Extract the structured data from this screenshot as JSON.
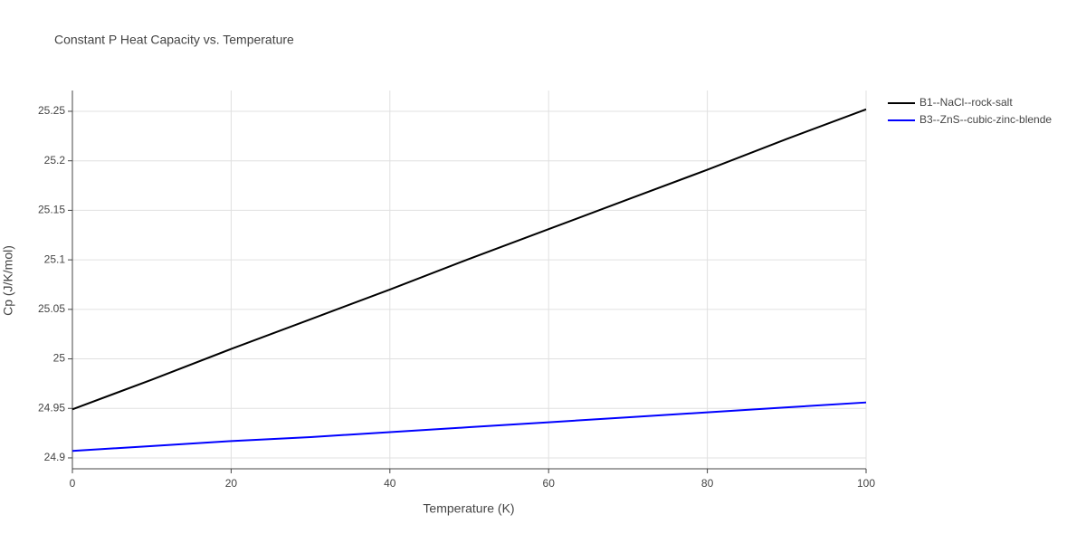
{
  "chart_data": {
    "type": "line",
    "title": "Constant P Heat Capacity vs. Temperature",
    "x_label": "Temperature (K)",
    "y_label": "Cp (J/K/mol)",
    "x": [
      0,
      10,
      20,
      30,
      40,
      50,
      60,
      70,
      80,
      90,
      100
    ],
    "series": [
      {
        "name": "B1--NaCl--rock-salt",
        "color": "#000000",
        "values": [
          24.949,
          24.979,
          25.01,
          25.04,
          25.07,
          25.101,
          25.131,
          25.161,
          25.191,
          25.222,
          25.252
        ]
      },
      {
        "name": "B3--ZnS--cubic-zinc-blende",
        "color": "#0000ff",
        "values": [
          24.907,
          24.912,
          24.917,
          24.921,
          24.926,
          24.931,
          24.936,
          24.941,
          24.946,
          24.951,
          24.956
        ]
      }
    ],
    "xlim": [
      0,
      100
    ],
    "xticks": [
      0,
      20,
      40,
      60,
      80,
      100
    ],
    "ylim": [
      24.889,
      25.271
    ],
    "yticks": [
      24.9,
      24.95,
      25,
      25.05,
      25.1,
      25.15,
      25.2,
      25.25
    ],
    "grid": true,
    "legend": "right"
  }
}
